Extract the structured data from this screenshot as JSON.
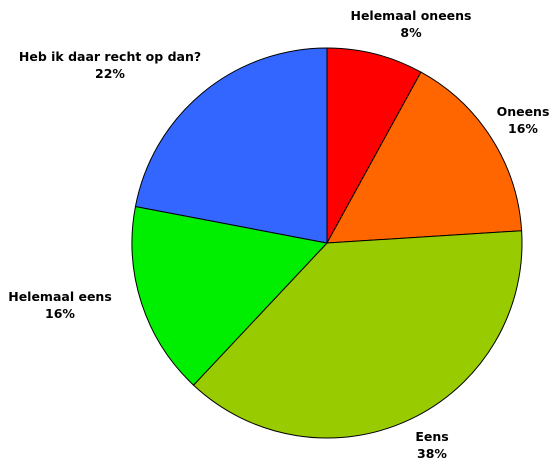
{
  "chart_data": {
    "type": "pie",
    "start_angle_deg": 0,
    "direction": "clockwise",
    "slices": [
      {
        "label": "Helemaal oneens",
        "value": 8,
        "display": "8%",
        "color": "#ff0000"
      },
      {
        "label": "Oneens",
        "value": 16,
        "display": "16%",
        "color": "#ff6600"
      },
      {
        "label": "Eens",
        "value": 38,
        "display": "38%",
        "color": "#99cc00"
      },
      {
        "label": "Helemaal eens",
        "value": 16,
        "display": "16%",
        "color": "#00ee00"
      },
      {
        "label": "Heb ik daar recht op dan?",
        "value": 22,
        "display": "22%",
        "color": "#3366ff"
      }
    ]
  }
}
